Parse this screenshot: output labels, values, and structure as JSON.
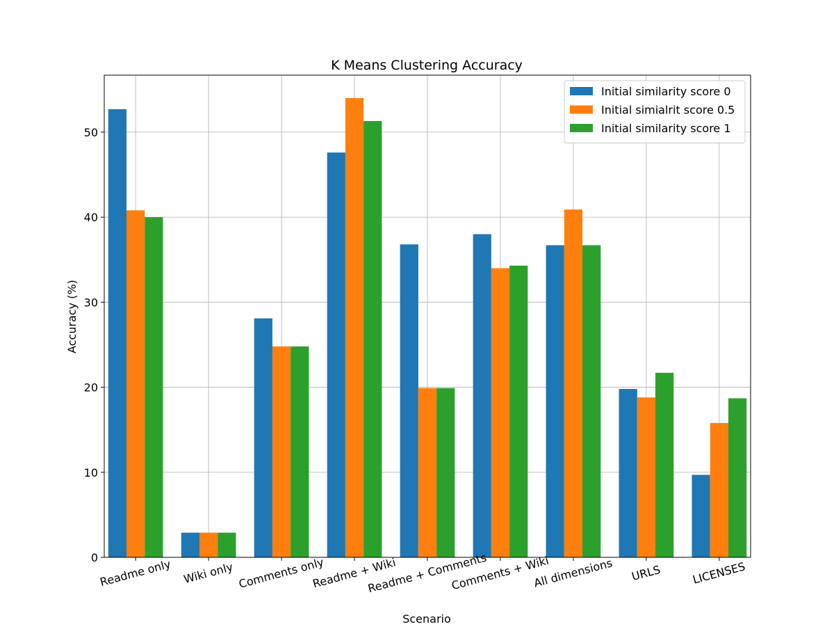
{
  "chart_data": {
    "type": "bar",
    "title": "K Means Clustering Accuracy",
    "xlabel": "Scenario",
    "ylabel": "Accuracy (%)",
    "categories": [
      "Readme only",
      "Wiki only",
      "Comments only",
      "Readme + Wiki",
      "Readme + Comments",
      "Comments + Wiki",
      "All dimensions",
      "URLS",
      "LICENSES"
    ],
    "series": [
      {
        "name": "Initial similarity score 0",
        "color": "#1f77b4",
        "values": [
          52.7,
          2.9,
          28.1,
          47.6,
          36.8,
          38.0,
          36.7,
          19.8,
          9.7
        ]
      },
      {
        "name": "Initial simialrit score 0.5",
        "color": "#ff7f0e",
        "values": [
          40.8,
          2.9,
          24.8,
          54.0,
          19.9,
          34.0,
          40.9,
          18.8,
          15.8
        ]
      },
      {
        "name": "Initial similarity score 1",
        "color": "#2ca02c",
        "values": [
          40.0,
          2.9,
          24.8,
          51.3,
          19.9,
          34.3,
          36.7,
          21.7,
          18.7
        ]
      }
    ],
    "yticks": [
      0,
      10,
      20,
      30,
      40,
      50
    ],
    "ylim": [
      0,
      56.7
    ],
    "grid": true,
    "legend_position": "top-right",
    "xtick_rotation_deg": -15
  }
}
